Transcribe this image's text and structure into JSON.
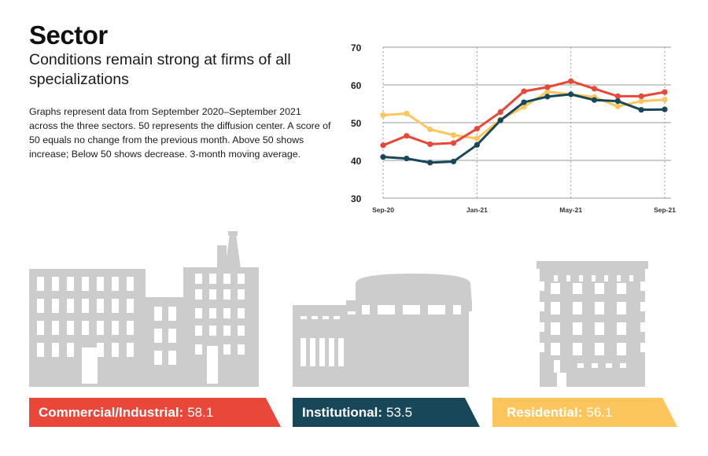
{
  "title": "Sector",
  "subtitle": "Conditions remain strong at firms of all specializations",
  "description": "Graphs represent data from September 2020–September 2021 across the three sectors. 50 represents the diffusion center. A score of 50 equals no change from the previous month. Above 50 shows increase; Below 50 shows decrease. 3-month moving average.",
  "colors": {
    "commercial": "#e8473a",
    "institutional": "#174759",
    "residential": "#fdc65c",
    "buildings": "#cccccc",
    "grid": "#999999"
  },
  "chart_data": {
    "type": "line",
    "x": [
      "Sep-20",
      "Oct-20",
      "Nov-20",
      "Dec-20",
      "Jan-21",
      "Feb-21",
      "Mar-21",
      "Apr-21",
      "May-21",
      "Jun-21",
      "Jul-21",
      "Aug-21",
      "Sep-21"
    ],
    "x_tick_labels": [
      "Sep-20",
      "Jan-21",
      "May-21",
      "Sep-21"
    ],
    "y_ticks": [
      30,
      40,
      50,
      60,
      70
    ],
    "ylim": [
      30,
      70
    ],
    "series": [
      {
        "color": "#fdc65c",
        "values": [
          52.0,
          52.4,
          48.2,
          46.7,
          45.8,
          50.8,
          54.2,
          58.2,
          57.5,
          56.8,
          54.3,
          55.7,
          56.1
        ]
      },
      {
        "color": "#e8473a",
        "values": [
          44.0,
          46.5,
          44.3,
          44.6,
          48.4,
          52.8,
          58.3,
          59.4,
          61.0,
          59.0,
          57.0,
          57.0,
          58.1
        ]
      },
      {
        "color": "#174759",
        "values": [
          40.9,
          40.5,
          39.4,
          39.7,
          44.1,
          50.6,
          55.4,
          56.9,
          57.5,
          56.0,
          55.7,
          53.4,
          53.5
        ]
      }
    ]
  },
  "banners": {
    "commercial": {
      "label": "Commercial/Industrial:",
      "value": "58.1"
    },
    "institutional": {
      "label": "Institutional:",
      "value": "53.5"
    },
    "residential": {
      "label": "Residential:",
      "value": "56.1"
    }
  }
}
